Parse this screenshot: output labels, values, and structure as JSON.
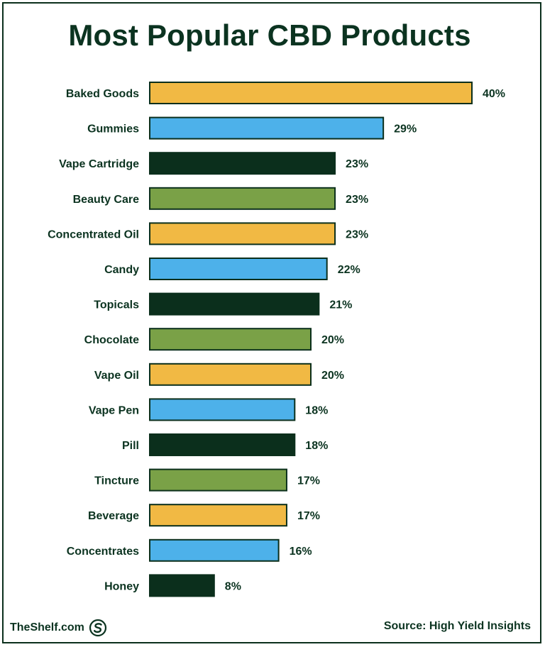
{
  "palette": [
    "#f1b944",
    "#4db1ea",
    "#0b2f1c",
    "#7aa147"
  ],
  "icons": {
    "brand_logo": "swirl-s-logo-icon"
  },
  "footer": {
    "brand": "TheShelf.com",
    "source": "Source: High Yield Insights"
  },
  "chart_data": {
    "type": "bar",
    "orientation": "horizontal",
    "title": "Most Popular CBD Products",
    "xlabel": "",
    "ylabel": "",
    "value_suffix": "%",
    "xlim": [
      0,
      40
    ],
    "grid": false,
    "categories": [
      "Baked Goods",
      "Gummies",
      "Vape Cartridge",
      "Beauty Care",
      "Concentrated Oil",
      "Candy",
      "Topicals",
      "Chocolate",
      "Vape Oil",
      "Vape Pen",
      "Pill",
      "Tincture",
      "Beverage",
      "Concentrates",
      "Honey"
    ],
    "values": [
      40,
      29,
      23,
      23,
      23,
      22,
      21,
      20,
      20,
      18,
      18,
      17,
      17,
      16,
      8
    ]
  }
}
